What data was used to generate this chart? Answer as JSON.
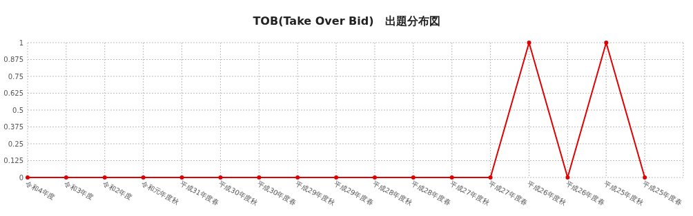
{
  "chart_data": {
    "type": "line",
    "title": "TOB(Take Over Bid)　出題分布図",
    "categories": [
      "令和4年度",
      "令和3年度",
      "令和2年度",
      "令和元年度秋",
      "平成31年度春",
      "平成30年度秋",
      "平成30年度春",
      "平成29年度秋",
      "平成29年度春",
      "平成28年度秋",
      "平成28年度春",
      "平成27年度秋",
      "平成27年度春",
      "平成26年度秋",
      "平成26年度春",
      "平成25年度秋",
      "平成25年度春"
    ],
    "series": [
      {
        "color": "#e00000",
        "values": [
          0,
          0,
          0,
          0,
          0,
          0,
          0,
          0,
          0,
          0,
          0,
          0,
          0,
          1,
          0,
          1,
          0
        ]
      }
    ],
    "ylim": [
      0,
      1
    ],
    "yticks": [
      0,
      0.125,
      0.25,
      0.375,
      0.5,
      0.625,
      0.75,
      0.875,
      1
    ],
    "grid": true,
    "marker": "circle",
    "line_style": "solid"
  }
}
